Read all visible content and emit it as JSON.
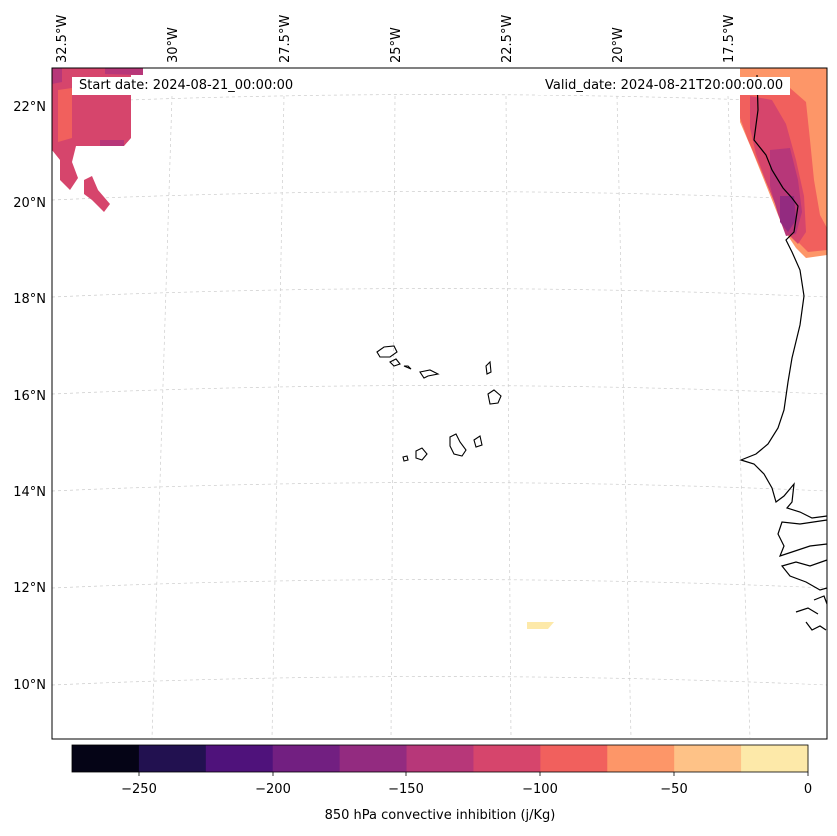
{
  "map": {
    "start_label": "Start date: 2024-08-21_00:00:00",
    "valid_label": "Valid_date: 2024-08-21T20:00:00.00",
    "lon_labels": [
      "32.5°W",
      "30°W",
      "27.5°W",
      "25°W",
      "22.5°W",
      "20°W",
      "17.5°W"
    ],
    "lat_labels": [
      "22°N",
      "20°N",
      "18°N",
      "16°N",
      "14°N",
      "12°N",
      "10°N"
    ],
    "features": [
      "Cape Verde islands",
      "West African coastline",
      "CIN shading"
    ]
  },
  "colorbar": {
    "title": "850 hPa convective inhibition (j/Kg)",
    "ticks": [
      "−250",
      "−200",
      "−150",
      "−100",
      "−50",
      "0"
    ],
    "levels": [
      -275,
      -250,
      -225,
      -200,
      -175,
      -150,
      -125,
      -100,
      -75,
      -50,
      -25,
      0
    ],
    "colors": [
      "#050416",
      "#221150",
      "#4f127b",
      "#721f81",
      "#932b80",
      "#b73779",
      "#d6456c",
      "#f1605d",
      "#fd9668",
      "#fec287",
      "#fde9a9"
    ]
  },
  "colors": {
    "frame": "#000000",
    "gridline": "#cccccc",
    "coast": "#000000"
  }
}
